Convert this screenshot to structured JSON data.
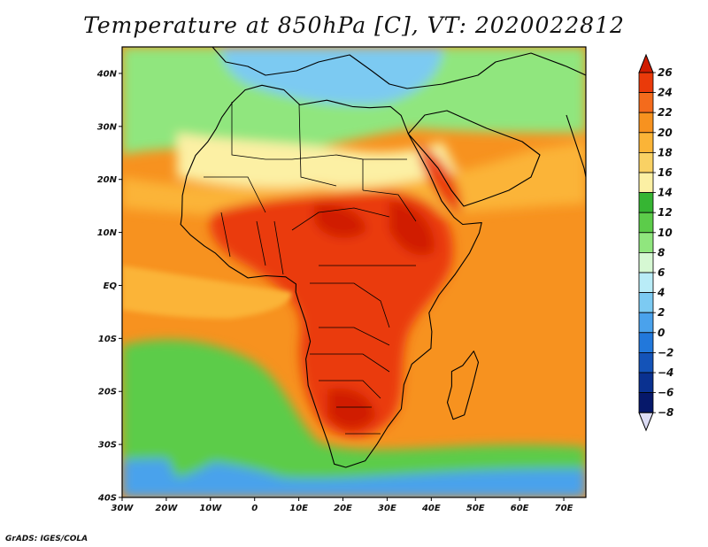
{
  "title": "Temperature at 850hPa [C], VT: 2020022812",
  "credit": "GrADS: IGES/COLA",
  "map": {
    "lon_range": [
      -30,
      75
    ],
    "lat_range": [
      -40,
      45
    ],
    "lat_labels": [
      "40N",
      "30N",
      "20N",
      "10N",
      "EQ",
      "10S",
      "20S",
      "30S",
      "40S"
    ],
    "lon_labels": [
      "30W",
      "20W",
      "10W",
      "0",
      "10E",
      "20E",
      "30E",
      "40E",
      "50E",
      "60E",
      "70E"
    ]
  },
  "colorbar": {
    "labels": [
      "26",
      "24",
      "22",
      "20",
      "18",
      "16",
      "14",
      "12",
      "10",
      "8",
      "6",
      "4",
      "2",
      "0",
      "−2",
      "−4",
      "−6",
      "−8"
    ],
    "colors": [
      "#d01c00",
      "#ea3a0a",
      "#f46b1c",
      "#f7921f",
      "#fbb437",
      "#f9d164",
      "#fcf0a4",
      "#36b533",
      "#5ccc4a",
      "#90e67e",
      "#d6f8d3",
      "#b9ecf7",
      "#7ccaf2",
      "#4aa2ec",
      "#2278db",
      "#1453b8",
      "#0a3190",
      "#06186a",
      "#dcdcf4"
    ]
  },
  "fields": {
    "ocean_warm": "#f7921f",
    "ocean_mild": "#fbb437",
    "ocean_cool": "#5ccc4a",
    "sahara": "#fcf0a4",
    "hot_core": "#ea3a0a",
    "hot_peak": "#d01c00",
    "mediterranean": "#90e67e",
    "europe": "#7ccaf2",
    "southern_ocean": "#4aa2ec"
  }
}
